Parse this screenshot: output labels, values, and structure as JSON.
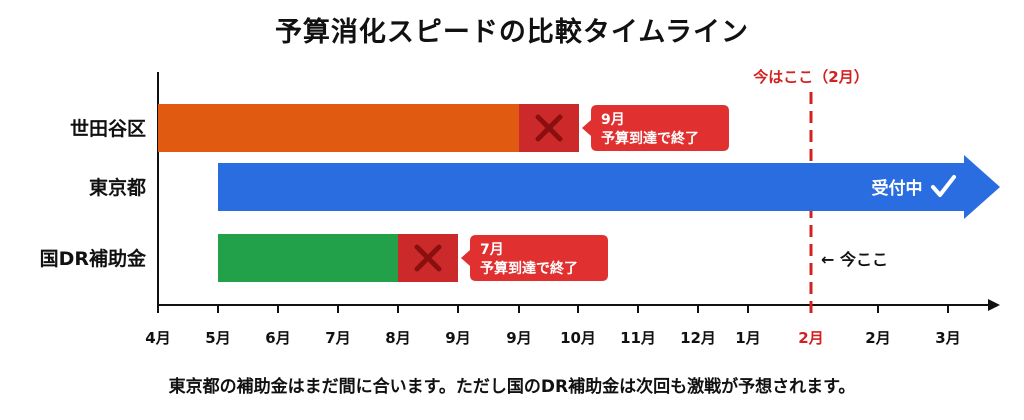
{
  "title": "予算消化スピードの比較タイムライン",
  "footer": "東京都の補助金はまだ間に合います。ただし国のDR補助金は次回も激戦が予想されます。",
  "colors": {
    "setagaya": "#e05a12",
    "tokyo": "#2a6de0",
    "kuni": "#22a04a",
    "stop": "#e03030",
    "stop_overlay": "#cc2a2a",
    "axis": "#111111",
    "now": "#d42020"
  },
  "chart_data": {
    "type": "timeline",
    "x_ticks": [
      "4月",
      "5月",
      "6月",
      "7月",
      "8月",
      "9月",
      "9月",
      "10月",
      "11月",
      "12月",
      "1月",
      "2月",
      "2月",
      "3月"
    ],
    "highlight_tick": 11,
    "rows": [
      {
        "label": "世田谷区",
        "start": 0,
        "end": 6,
        "stop_at": 6,
        "color_key": "setagaya",
        "callout": [
          "9月",
          "予算到達で終了"
        ],
        "status": "ended"
      },
      {
        "label": "東京都",
        "start": 1,
        "end": 13.5,
        "color_key": "tokyo",
        "status": "open",
        "status_text": "受付中",
        "status_icon": "check-icon"
      },
      {
        "label": "国DR補助金",
        "start": 1,
        "end": 4,
        "stop_at": 4,
        "color_key": "kuni",
        "callout": [
          "7月",
          "予算到達で終了"
        ],
        "status": "ended"
      }
    ],
    "now_marker": {
      "label": "今はここ（2月）",
      "tick": 11,
      "arrow_label": "← 今ここ"
    }
  }
}
